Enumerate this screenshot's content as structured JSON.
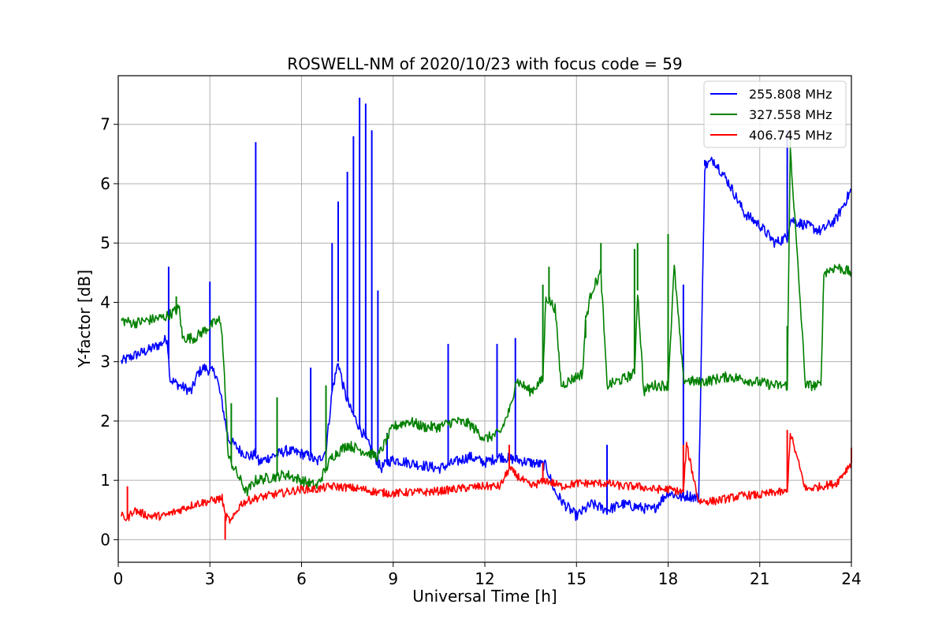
{
  "chart_data": {
    "type": "line",
    "title": "ROSWELL-NM of 2020/10/23 with focus code = 59",
    "xlabel": "Universal Time [h]",
    "ylabel": "Y-factor [dB]",
    "xlim": [
      0,
      24
    ],
    "ylim": [
      -0.38,
      7.82
    ],
    "xticks": [
      0,
      3,
      6,
      9,
      12,
      15,
      18,
      21,
      24
    ],
    "xtick_labels": [
      "0",
      "3",
      "6",
      "9",
      "12",
      "15",
      "18",
      "21",
      "24"
    ],
    "yticks": [
      0,
      1,
      2,
      3,
      4,
      5,
      6,
      7
    ],
    "ytick_labels": [
      "0",
      "1",
      "2",
      "3",
      "4",
      "5",
      "6",
      "7"
    ],
    "grid": true,
    "legend_position": "top-right",
    "series": [
      {
        "name": "255.808 MHz",
        "color": "#0000ff",
        "x": [
          0.1,
          0.5,
          1.0,
          1.4,
          1.6,
          1.7,
          2.0,
          2.4,
          2.6,
          2.8,
          3.0,
          3.2,
          3.4,
          3.5,
          3.6,
          3.8,
          4.0,
          4.3,
          4.5,
          4.6,
          5.0,
          5.5,
          6.0,
          6.3,
          6.5,
          6.8,
          7.0,
          7.2,
          7.4,
          7.6,
          7.8,
          8.0,
          8.2,
          8.4,
          8.6,
          8.8,
          9.0,
          9.5,
          10.0,
          10.5,
          11.0,
          11.5,
          12.0,
          12.5,
          13.0,
          13.5,
          14.0,
          14.3,
          14.6,
          15.0,
          15.5,
          16.0,
          16.5,
          17.0,
          17.5,
          18.0,
          18.5,
          18.6,
          19.0,
          19.2,
          19.5,
          20.0,
          20.5,
          21.0,
          21.5,
          21.9,
          22.0,
          22.5,
          23.0,
          23.5,
          24.0
        ],
        "y": [
          3.0,
          3.1,
          3.2,
          3.3,
          3.4,
          2.7,
          2.6,
          2.5,
          2.8,
          2.9,
          2.85,
          2.8,
          2.3,
          2.0,
          1.7,
          1.6,
          1.5,
          1.4,
          1.45,
          1.3,
          1.4,
          1.5,
          1.45,
          1.4,
          1.3,
          1.5,
          2.5,
          3.0,
          2.5,
          2.2,
          2.0,
          1.8,
          1.6,
          1.4,
          1.2,
          1.3,
          1.35,
          1.3,
          1.25,
          1.2,
          1.3,
          1.4,
          1.3,
          1.4,
          1.35,
          1.3,
          1.25,
          0.8,
          0.6,
          0.4,
          0.6,
          0.5,
          0.6,
          0.55,
          0.5,
          0.8,
          0.7,
          0.75,
          0.7,
          6.3,
          6.4,
          6.0,
          5.5,
          5.3,
          5.0,
          5.1,
          5.4,
          5.3,
          5.2,
          5.4,
          5.9
        ],
        "spikes": [
          [
            1.65,
            4.6
          ],
          [
            3.0,
            4.35
          ],
          [
            4.5,
            6.7
          ],
          [
            6.3,
            2.9
          ],
          [
            7.0,
            5.0
          ],
          [
            7.2,
            5.7
          ],
          [
            7.5,
            6.2
          ],
          [
            7.7,
            6.8
          ],
          [
            7.9,
            7.45
          ],
          [
            8.1,
            7.35
          ],
          [
            8.3,
            6.9
          ],
          [
            8.5,
            4.2
          ],
          [
            8.8,
            1.8
          ],
          [
            10.8,
            3.3
          ],
          [
            12.4,
            3.3
          ],
          [
            13.0,
            3.4
          ],
          [
            16.0,
            1.6
          ],
          [
            18.5,
            4.3
          ],
          [
            19.2,
            6.4
          ],
          [
            21.9,
            6.9
          ]
        ]
      },
      {
        "name": "327.558 MHz",
        "color": "#008000",
        "x": [
          0.1,
          0.5,
          1.0,
          1.5,
          1.7,
          2.0,
          2.1,
          2.5,
          3.0,
          3.3,
          3.4,
          3.5,
          3.6,
          3.8,
          4.0,
          4.2,
          4.5,
          5.0,
          5.5,
          6.0,
          6.5,
          7.0,
          7.5,
          8.0,
          8.5,
          9.0,
          9.5,
          10.0,
          10.5,
          11.0,
          11.5,
          12.0,
          12.5,
          12.9,
          13.0,
          13.5,
          13.9,
          14.0,
          14.3,
          14.5,
          15.0,
          15.2,
          15.3,
          15.5,
          15.8,
          16.0,
          16.5,
          16.9,
          17.0,
          17.2,
          17.5,
          18.0,
          18.2,
          18.5,
          19.0,
          19.5,
          20.0,
          20.5,
          21.0,
          21.5,
          21.9,
          22.0,
          22.5,
          23.0,
          23.1,
          23.5,
          24.0
        ],
        "y": [
          3.7,
          3.65,
          3.7,
          3.75,
          3.8,
          3.9,
          3.4,
          3.4,
          3.6,
          3.7,
          3.5,
          2.5,
          1.4,
          1.2,
          1.0,
          0.8,
          1.0,
          1.05,
          1.1,
          1.0,
          0.9,
          1.4,
          1.6,
          1.5,
          1.4,
          1.9,
          2.0,
          1.9,
          1.9,
          2.0,
          1.95,
          1.7,
          1.8,
          2.3,
          2.7,
          2.5,
          2.7,
          4.1,
          3.9,
          2.6,
          2.75,
          2.8,
          3.7,
          4.2,
          4.5,
          2.6,
          2.7,
          2.8,
          4.2,
          2.5,
          2.6,
          2.6,
          4.6,
          2.7,
          2.65,
          2.7,
          2.75,
          2.7,
          2.65,
          2.6,
          2.6,
          6.6,
          2.6,
          2.6,
          4.5,
          4.6,
          4.5
        ],
        "spikes": [
          [
            1.9,
            4.1
          ],
          [
            3.7,
            2.3
          ],
          [
            5.2,
            2.4
          ],
          [
            6.8,
            2.6
          ],
          [
            13.9,
            4.3
          ],
          [
            14.1,
            4.6
          ],
          [
            15.3,
            3.4
          ],
          [
            15.8,
            5.0
          ],
          [
            16.9,
            4.9
          ],
          [
            17.0,
            5.0
          ],
          [
            18.0,
            5.15
          ],
          [
            21.9,
            3.6
          ],
          [
            22.0,
            6.9
          ]
        ]
      },
      {
        "name": "406.745 MHz",
        "color": "#ff0000",
        "x": [
          0.1,
          0.3,
          0.5,
          1.0,
          1.5,
          2.0,
          2.5,
          3.0,
          3.4,
          3.5,
          3.7,
          4.0,
          4.2,
          4.5,
          5.0,
          5.5,
          6.0,
          6.5,
          7.0,
          7.5,
          8.0,
          8.5,
          9.0,
          9.5,
          10.0,
          10.5,
          11.0,
          11.5,
          12.0,
          12.5,
          12.8,
          13.0,
          13.5,
          14.0,
          14.5,
          15.0,
          15.5,
          16.0,
          16.5,
          17.0,
          17.5,
          18.0,
          18.5,
          18.6,
          19.0,
          19.5,
          20.0,
          20.5,
          21.0,
          21.5,
          21.9,
          22.0,
          22.5,
          23.0,
          23.5,
          24.0
        ],
        "y": [
          0.4,
          0.35,
          0.5,
          0.4,
          0.4,
          0.5,
          0.6,
          0.65,
          0.7,
          0.4,
          0.3,
          0.6,
          0.65,
          0.7,
          0.75,
          0.8,
          0.85,
          0.85,
          0.9,
          0.88,
          0.85,
          0.8,
          0.78,
          0.8,
          0.8,
          0.82,
          0.85,
          0.88,
          0.9,
          0.9,
          1.2,
          1.1,
          0.9,
          1.0,
          0.9,
          0.95,
          0.95,
          0.95,
          0.9,
          0.9,
          0.85,
          0.85,
          0.8,
          1.6,
          0.65,
          0.65,
          0.7,
          0.75,
          0.75,
          0.8,
          0.8,
          1.8,
          0.85,
          0.9,
          0.95,
          1.3
        ],
        "spikes": [
          [
            0.3,
            0.9
          ],
          [
            3.5,
            0.0
          ],
          [
            12.8,
            1.6
          ],
          [
            13.9,
            1.3
          ],
          [
            18.5,
            1.6
          ],
          [
            21.9,
            1.85
          ],
          [
            24.0,
            1.55
          ]
        ]
      }
    ]
  }
}
